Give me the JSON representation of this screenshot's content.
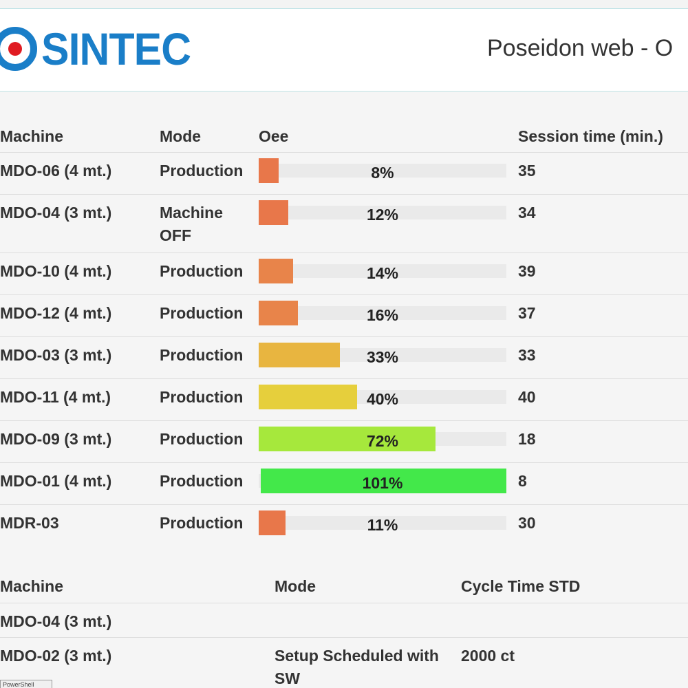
{
  "header": {
    "logo_text": "SINTEC",
    "title": "Poseidon web - O"
  },
  "colors": {
    "brand_blue": "#1a7ec8",
    "brand_red": "#e01b22",
    "oee_low": "#e8774a",
    "oee_mid": "#e8b540",
    "oee_mid_high": "#e6cf3c",
    "oee_high": "#a6e83c",
    "oee_max": "#43e84a"
  },
  "sessions": {
    "columns": [
      "Machine",
      "Mode",
      "Oee",
      "Session time (min.)"
    ],
    "rows": [
      {
        "machine": "MDO-06 (4 mt.)",
        "mode": "Production",
        "oee_label": "8%",
        "oee": 8,
        "color": "#e8774a",
        "session": "35"
      },
      {
        "machine": "MDO-04 (3 mt.)",
        "mode": "Machine OFF",
        "oee_label": "12%",
        "oee": 12,
        "color": "#e8774a",
        "session": "34"
      },
      {
        "machine": "MDO-10 (4 mt.)",
        "mode": "Production",
        "oee_label": "14%",
        "oee": 14,
        "color": "#e8844a",
        "session": "39"
      },
      {
        "machine": "MDO-12 (4 mt.)",
        "mode": "Production",
        "oee_label": "16%",
        "oee": 16,
        "color": "#e8844a",
        "session": "37"
      },
      {
        "machine": "MDO-03 (3 mt.)",
        "mode": "Production",
        "oee_label": "33%",
        "oee": 33,
        "color": "#e8b540",
        "session": "33"
      },
      {
        "machine": "MDO-11 (4 mt.)",
        "mode": "Production",
        "oee_label": "40%",
        "oee": 40,
        "color": "#e6cf3c",
        "session": "40"
      },
      {
        "machine": "MDO-09 (3 mt.)",
        "mode": "Production",
        "oee_label": "72%",
        "oee": 72,
        "color": "#a6e83c",
        "session": "18"
      },
      {
        "machine": "MDO-01 (4 mt.)",
        "mode": "Production",
        "oee_label": "101%",
        "oee": 101,
        "color": "#43e84a",
        "session": "8"
      },
      {
        "machine": "MDR-03",
        "mode": "Production",
        "oee_label": "11%",
        "oee": 11,
        "color": "#e8774a",
        "session": "30"
      }
    ]
  },
  "cycle": {
    "columns": [
      "Machine",
      "Mode",
      "Cycle Time STD"
    ],
    "rows": [
      {
        "machine": "MDO-04 (3 mt.)",
        "mode": "",
        "ct": ""
      },
      {
        "machine": "MDO-02 (3 mt.)",
        "mode": "Setup Scheduled with SW",
        "ct": "2000 ct"
      }
    ]
  },
  "taskbar": {
    "label": "PowerShell"
  }
}
